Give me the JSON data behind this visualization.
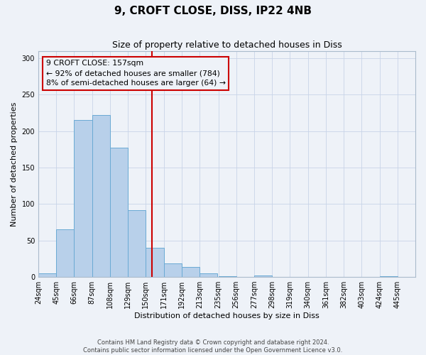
{
  "title": "9, CROFT CLOSE, DISS, IP22 4NB",
  "subtitle": "Size of property relative to detached houses in Diss",
  "xlabel": "Distribution of detached houses by size in Diss",
  "ylabel": "Number of detached properties",
  "bin_labels": [
    "24sqm",
    "45sqm",
    "66sqm",
    "87sqm",
    "108sqm",
    "129sqm",
    "150sqm",
    "171sqm",
    "192sqm",
    "213sqm",
    "235sqm",
    "256sqm",
    "277sqm",
    "298sqm",
    "319sqm",
    "340sqm",
    "361sqm",
    "382sqm",
    "403sqm",
    "424sqm",
    "445sqm"
  ],
  "bin_edges": [
    24,
    45,
    66,
    87,
    108,
    129,
    150,
    171,
    192,
    213,
    235,
    256,
    277,
    298,
    319,
    340,
    361,
    382,
    403,
    424,
    445
  ],
  "bin_width": 21,
  "bar_heights": [
    5,
    65,
    215,
    222,
    177,
    92,
    40,
    19,
    14,
    5,
    1,
    0,
    2,
    0,
    0,
    0,
    0,
    0,
    0,
    1
  ],
  "bar_color": "#b8d0ea",
  "bar_edge_color": "#6aaad4",
  "property_size": 157,
  "vline_color": "#cc0000",
  "vline_label": "9 CROFT CLOSE: 157sqm",
  "annotation_line1": "← 92% of detached houses are smaller (784)",
  "annotation_line2": "8% of semi-detached houses are larger (64) →",
  "box_edge_color": "#cc0000",
  "ylim": [
    0,
    310
  ],
  "yticks": [
    0,
    50,
    100,
    150,
    200,
    250,
    300
  ],
  "footer1": "Contains HM Land Registry data © Crown copyright and database right 2024.",
  "footer2": "Contains public sector information licensed under the Open Government Licence v3.0.",
  "background_color": "#eef2f8",
  "grid_color": "#c8d4e8",
  "title_fontsize": 11,
  "subtitle_fontsize": 9,
  "axis_label_fontsize": 8,
  "tick_fontsize": 7,
  "footer_fontsize": 6
}
